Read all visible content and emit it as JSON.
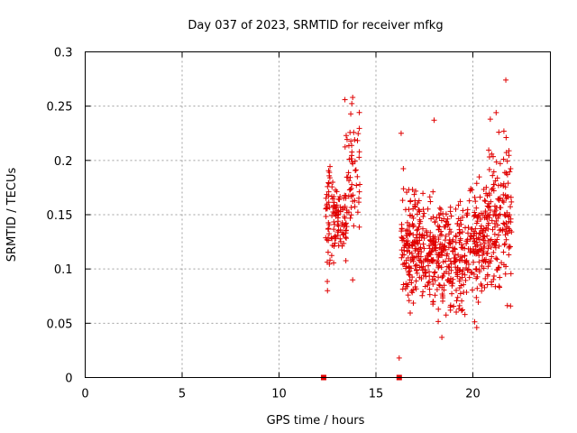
{
  "chart_data": {
    "type": "scatter",
    "title": "Day 037 of 2023, SRMTID for receiver mfkg",
    "xlabel": "GPS time / hours",
    "ylabel": "SRMTID / TECUs",
    "xlim": [
      0,
      24
    ],
    "ylim": [
      0,
      0.3
    ],
    "xticks": [
      0,
      5,
      10,
      15,
      20
    ],
    "xtick_labels": [
      "0",
      "5",
      "10",
      "15",
      "20"
    ],
    "yticks": [
      0,
      0.05,
      0.1,
      0.15,
      0.2,
      0.25,
      0.3
    ],
    "ytick_labels": [
      "0",
      "0.05",
      "0.1",
      "0.15",
      "0.2",
      "0.25",
      "0.3"
    ],
    "grid": true,
    "marker": "plus",
    "color": "#e00000",
    "zero_markers": [
      {
        "x": 12.3,
        "y": 0
      },
      {
        "x": 16.2,
        "y": 0
      }
    ],
    "clusters": [
      {
        "x_start": 12.4,
        "x_end": 12.9,
        "y_min": 0.08,
        "y_max": 0.22,
        "count": 60,
        "seed": 11
      },
      {
        "x_start": 12.9,
        "x_end": 13.5,
        "y_min": 0.1,
        "y_max": 0.19,
        "count": 55,
        "seed": 12
      },
      {
        "x_start": 13.4,
        "x_end": 14.2,
        "y_min": 0.11,
        "y_max": 0.26,
        "count": 60,
        "seed": 13
      },
      {
        "x_start": 16.3,
        "x_end": 17.3,
        "y_min": 0.05,
        "y_max": 0.2,
        "count": 150,
        "seed": 21
      },
      {
        "x_start": 17.3,
        "x_end": 18.5,
        "y_min": 0.045,
        "y_max": 0.18,
        "count": 160,
        "seed": 22
      },
      {
        "x_start": 18.5,
        "x_end": 19.7,
        "y_min": 0.04,
        "y_max": 0.18,
        "count": 150,
        "seed": 23
      },
      {
        "x_start": 19.7,
        "x_end": 20.8,
        "y_min": 0.045,
        "y_max": 0.2,
        "count": 150,
        "seed": 24
      },
      {
        "x_start": 20.8,
        "x_end": 22.0,
        "y_min": 0.055,
        "y_max": 0.24,
        "count": 150,
        "seed": 25
      }
    ],
    "highlight_points": [
      {
        "x": 21.7,
        "y": 0.274
      },
      {
        "x": 21.2,
        "y": 0.244
      },
      {
        "x": 20.9,
        "y": 0.238
      },
      {
        "x": 18.0,
        "y": 0.237
      },
      {
        "x": 16.3,
        "y": 0.225
      },
      {
        "x": 21.6,
        "y": 0.227
      },
      {
        "x": 13.8,
        "y": 0.258
      },
      {
        "x": 13.4,
        "y": 0.256
      },
      {
        "x": 16.2,
        "y": 0.018
      },
      {
        "x": 18.4,
        "y": 0.037
      },
      {
        "x": 13.8,
        "y": 0.09
      },
      {
        "x": 12.5,
        "y": 0.08
      },
      {
        "x": 20.2,
        "y": 0.046
      }
    ]
  }
}
